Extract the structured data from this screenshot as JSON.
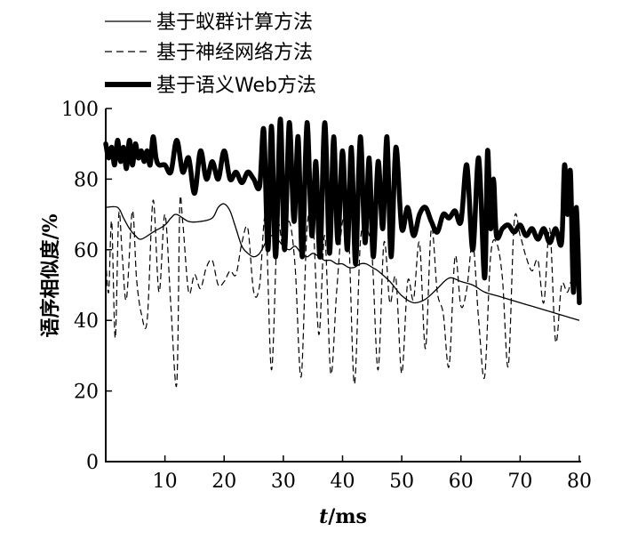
{
  "chart_data": {
    "type": "line",
    "title": "",
    "xlabel": "t/ms",
    "xlabel_var": "t",
    "xlabel_unit": "/ms",
    "ylabel": "语序相似度/%",
    "xlim": [
      0,
      80
    ],
    "ylim": [
      0,
      100
    ],
    "xticks": [
      10,
      20,
      30,
      40,
      50,
      60,
      70,
      80
    ],
    "yticks": [
      0,
      20,
      40,
      60,
      80,
      100
    ],
    "grid": false,
    "legend_position": "top-left",
    "series": [
      {
        "name": "基于蚁群计算方法",
        "style": "solid-thin",
        "color": "#000000",
        "x": [
          0,
          2,
          3,
          4,
          5,
          6,
          8,
          10,
          11,
          12,
          14,
          16,
          18,
          19,
          20,
          21,
          22,
          23,
          24,
          25,
          26,
          27,
          28,
          29,
          30,
          31,
          32,
          33,
          34,
          35,
          36,
          37,
          38,
          39,
          40,
          41,
          42,
          43,
          44,
          45,
          46,
          48,
          50,
          52,
          54,
          56,
          58,
          60,
          62,
          64,
          66,
          68,
          70,
          72,
          74,
          76,
          78,
          80
        ],
        "y": [
          72,
          72,
          69,
          66,
          64,
          63,
          65,
          67,
          69,
          70,
          68,
          68,
          69,
          72,
          73,
          71,
          66,
          61,
          59,
          58,
          59,
          62,
          64,
          63,
          61,
          60,
          61,
          59,
          58,
          59,
          58,
          57,
          57,
          56,
          56,
          55,
          55,
          56,
          56,
          55,
          54,
          51,
          47,
          45,
          46,
          49,
          52,
          51,
          50,
          48,
          47,
          46,
          45,
          44,
          43,
          42,
          41,
          40
        ]
      },
      {
        "name": "基于神经网络方法",
        "style": "dashed",
        "color": "#000000",
        "x": [
          0,
          0.5,
          1,
          1.6,
          2.2,
          2.8,
          3.5,
          4.5,
          5.2,
          6,
          7,
          8,
          9,
          10,
          11,
          12,
          12.5,
          13,
          14,
          15,
          16,
          17,
          18,
          19,
          20,
          21,
          22,
          23,
          24,
          25,
          26,
          27,
          28,
          29,
          30,
          31,
          32,
          33,
          34,
          35,
          36,
          37,
          38,
          39,
          40,
          41,
          42,
          43,
          44,
          45,
          46,
          47,
          48,
          49,
          50,
          51,
          52,
          53,
          54,
          55,
          56,
          57,
          58,
          59,
          60,
          61,
          62,
          63,
          64,
          65,
          66,
          67,
          68,
          69,
          70,
          71,
          72,
          73,
          74,
          75,
          76,
          77,
          78,
          79,
          80
        ],
        "y": [
          57,
          48,
          68,
          35,
          70,
          58,
          46,
          71,
          52,
          42,
          40,
          74,
          48,
          70,
          44,
          22,
          72,
          68,
          48,
          53,
          49,
          55,
          57,
          50,
          51,
          54,
          53,
          62,
          66,
          48,
          50,
          69,
          26,
          66,
          60,
          68,
          55,
          24,
          66,
          68,
          36,
          64,
          25,
          48,
          68,
          65,
          22,
          62,
          66,
          58,
          26,
          62,
          45,
          52,
          25,
          51,
          46,
          62,
          32,
          66,
          48,
          42,
          27,
          58,
          44,
          49,
          62,
          40,
          24,
          58,
          62,
          52,
          27,
          68,
          64,
          58,
          54,
          57,
          45,
          66,
          34,
          50,
          48,
          53,
          50
        ]
      },
      {
        "name": "基于语义Web方法",
        "style": "solid-thick",
        "color": "#000000",
        "x": [
          0,
          0.5,
          1,
          1.5,
          2,
          2.5,
          3,
          3.5,
          4,
          4.5,
          5,
          5.5,
          6,
          6.5,
          7,
          7.5,
          8,
          8.5,
          9,
          10,
          11,
          12,
          13,
          14,
          15,
          16,
          17,
          18,
          19,
          20,
          21,
          22,
          23,
          24,
          25,
          26,
          26.7,
          27.4,
          28,
          28.7,
          29.5,
          30.2,
          31,
          31.8,
          32.5,
          33.2,
          34,
          34.8,
          35.5,
          36.2,
          37,
          37.8,
          38.5,
          39.2,
          40,
          40.8,
          41.5,
          42.2,
          43,
          43.8,
          44.5,
          45.2,
          46,
          46.8,
          47.5,
          48.2,
          49,
          50,
          51,
          52,
          53,
          54,
          55,
          56,
          57,
          58,
          59,
          60,
          61,
          62,
          63,
          64,
          64.5,
          65,
          65.5,
          66,
          67,
          68,
          69,
          70,
          71,
          72,
          73,
          74,
          75,
          76,
          77,
          77.5,
          78,
          78.5,
          79,
          79.5,
          80
        ],
        "y": [
          90,
          86,
          89,
          84,
          91,
          85,
          89,
          83,
          91,
          84,
          90,
          86,
          88,
          85,
          88,
          84,
          92,
          86,
          84,
          84,
          82,
          91,
          82,
          86,
          76,
          88,
          80,
          85,
          80,
          88,
          80,
          82,
          79,
          82,
          80,
          78,
          94,
          60,
          95,
          58,
          97,
          60,
          96,
          68,
          92,
          58,
          96,
          64,
          85,
          58,
          96,
          59,
          92,
          62,
          88,
          60,
          89,
          56,
          92,
          62,
          86,
          58,
          85,
          66,
          92,
          58,
          89,
          66,
          72,
          64,
          70,
          72,
          68,
          65,
          70,
          69,
          71,
          68,
          84,
          60,
          86,
          52,
          88,
          66,
          80,
          64,
          66,
          67,
          65,
          67,
          64,
          66,
          63,
          66,
          62,
          66,
          62,
          84,
          70,
          82,
          48,
          72,
          45
        ]
      }
    ]
  }
}
